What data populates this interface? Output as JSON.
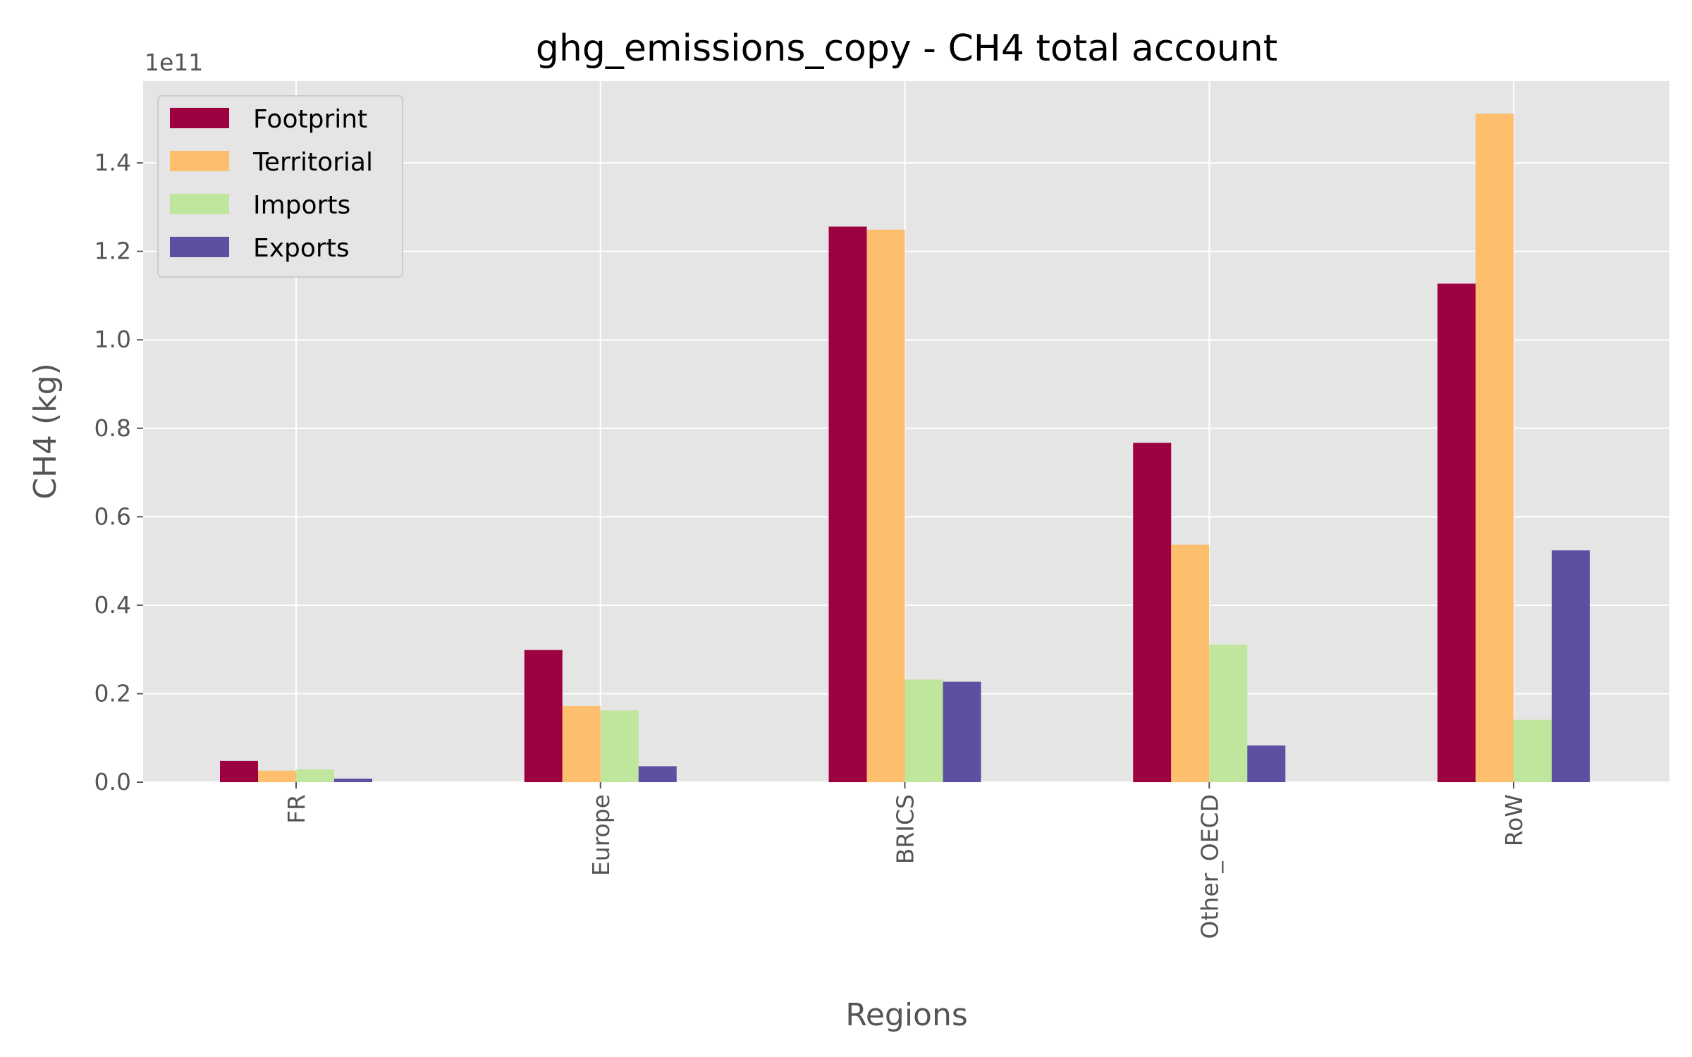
{
  "chart_data": {
    "type": "bar",
    "title": "ghg_emissions_copy - CH4 total account",
    "xlabel": "Regions",
    "ylabel": "CH4 (kg)",
    "y_offset_label": "1e11",
    "y_scale_factor": 100000000000,
    "categories": [
      "FR",
      "Europe",
      "BRICS",
      "Other_OECD",
      "RoW"
    ],
    "yticks": [
      0.0,
      0.2,
      0.4,
      0.6,
      0.8,
      1.0,
      1.2,
      1.4
    ],
    "ytick_labels": [
      "0.0",
      "0.2",
      "0.4",
      "0.6",
      "0.8",
      "1.0",
      "1.2",
      "1.4"
    ],
    "ylim": [
      0,
      1.585
    ],
    "grid": true,
    "legend_position": "top-left",
    "series": [
      {
        "name": "Footprint",
        "color": "#9e0142",
        "values": [
          0.048,
          0.299,
          1.256,
          0.767,
          1.127
        ]
      },
      {
        "name": "Territorial",
        "color": "#fdbe6e",
        "values": [
          0.026,
          0.172,
          1.249,
          0.537,
          1.511
        ]
      },
      {
        "name": "Imports",
        "color": "#c0e59d",
        "values": [
          0.029,
          0.162,
          0.232,
          0.311,
          0.141
        ]
      },
      {
        "name": "Exports",
        "color": "#5e4fa2",
        "values": [
          0.008,
          0.036,
          0.227,
          0.083,
          0.524
        ]
      }
    ]
  }
}
